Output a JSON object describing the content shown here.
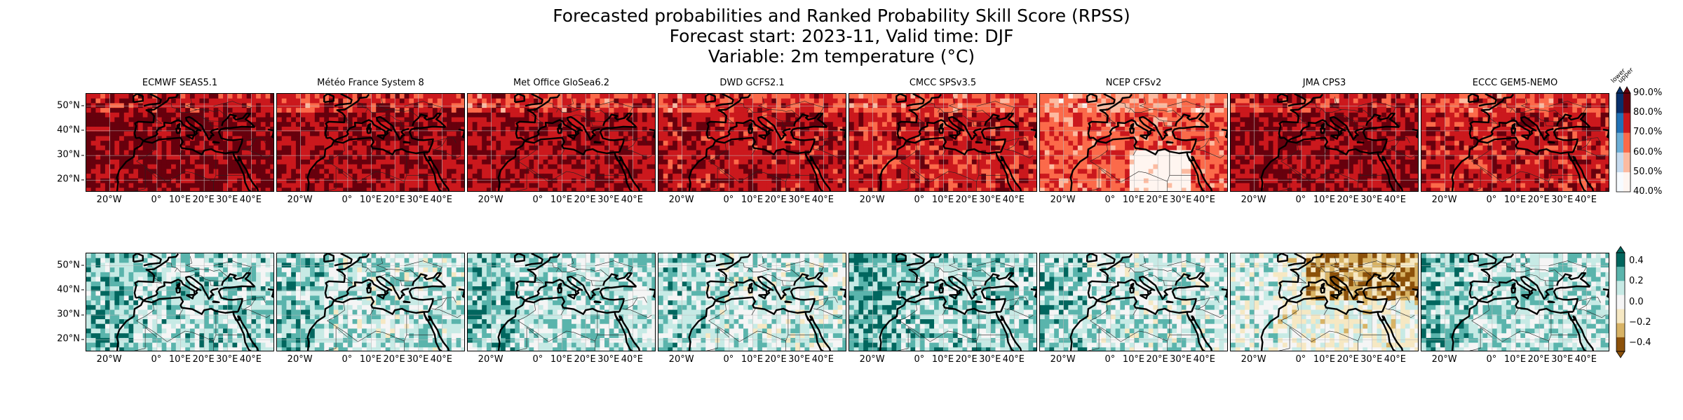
{
  "title": {
    "line1": "Forecasted probabilities and Ranked Probability Skill Score (RPSS)",
    "line2": "Forecast start: 2023-11, Valid time: DJF",
    "line3": "Variable: 2m temperature (°C)"
  },
  "models": [
    "ECMWF SEAS5.1",
    "Météo France System 8",
    "Met Office GloSea6.2",
    "DWD GCFS2.1",
    "CMCC SPSv3.5",
    "NCEP CFSv2",
    "JMA CPS3",
    "ECCC GEM5-NEMO"
  ],
  "map_axes": {
    "xtick_labels": [
      "20°W",
      "0°",
      "10°E",
      "20°E",
      "30°E",
      "40°E"
    ],
    "xtick_values": [
      -20,
      0,
      10,
      20,
      30,
      40
    ],
    "ytick_labels": [
      "50°N",
      "40°N",
      "30°N",
      "20°N"
    ],
    "ytick_values": [
      50,
      40,
      30,
      20
    ],
    "lon_range": [
      -30,
      50
    ],
    "lat_range": [
      15,
      55
    ],
    "gridlines": true
  },
  "probability_colorbar": {
    "tick_labels": [
      "90.0%",
      "80.0%",
      "70.0%",
      "60.0%",
      "50.0%",
      "40.0%"
    ],
    "category_labels": [
      "lower",
      "upper"
    ],
    "colors": {
      "upper": [
        "#fff5f0",
        "#fcbba1",
        "#fb6a4a",
        "#cb181d",
        "#67000d"
      ],
      "lower": [
        "#f7fbff",
        "#c6dbef",
        "#6baed6",
        "#2171b5",
        "#08306b"
      ]
    }
  },
  "rpss_colorbar": {
    "tick_labels": [
      "0.4",
      "0.2",
      "0.0",
      "−0.2",
      "−0.4"
    ],
    "tick_values": [
      0.4,
      0.2,
      0.0,
      -0.2,
      -0.4
    ],
    "colors": [
      "#01665e",
      "#5ab4ac",
      "#c7eae5",
      "#f5f5f5",
      "#f6e8c3",
      "#d8b365",
      "#8c510a"
    ]
  }
}
